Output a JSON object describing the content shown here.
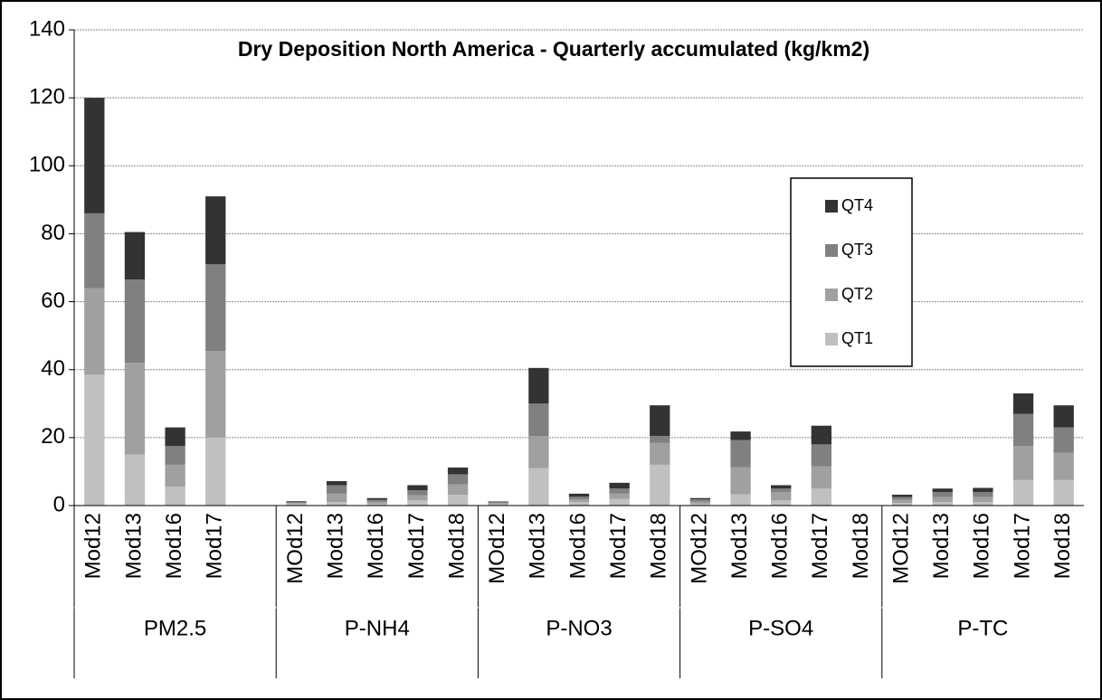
{
  "chart_data": {
    "type": "bar",
    "stacked": true,
    "title": "Dry Deposition North America - Quarterly accumulated (kg/km2)",
    "groups": [
      {
        "name": "PM2.5",
        "categories": [
          "Mod12",
          "Mod13",
          "Mod16",
          "Mod17",
          null
        ]
      },
      {
        "name": "P-NH4",
        "categories": [
          "MOd12",
          "Mod13",
          "Mod16",
          "Mod17",
          "Mod18"
        ]
      },
      {
        "name": "P-NO3",
        "categories": [
          "MOd12",
          "Mod13",
          "Mod16",
          "Mod17",
          "Mod18"
        ]
      },
      {
        "name": "P-SO4",
        "categories": [
          "MOd12",
          "Mod13",
          "Mod16",
          "Mod17",
          "Mod18"
        ]
      },
      {
        "name": "P-TC",
        "categories": [
          "MOd12",
          "Mod13",
          "Mod16",
          "Mod17",
          "Mod18"
        ]
      }
    ],
    "series": [
      {
        "name": "QT1",
        "color": "#c0c0c0",
        "values": [
          38.5,
          15,
          5.5,
          20,
          null,
          0.5,
          1,
          0.5,
          1.5,
          3.2,
          0.4,
          11,
          1,
          2,
          12,
          0.5,
          3.3,
          1.5,
          5,
          null,
          0.8,
          1,
          1,
          7.5,
          7.5
        ]
      },
      {
        "name": "QT2",
        "color": "#a0a0a0",
        "values": [
          25.5,
          27,
          6.5,
          25.5,
          null,
          0.3,
          2.5,
          0.6,
          1.5,
          3,
          0.3,
          9.5,
          0.8,
          1.5,
          6.5,
          0.7,
          8,
          2.5,
          6.5,
          null,
          0.9,
          1.5,
          1.5,
          10,
          8
        ]
      },
      {
        "name": "QT3",
        "color": "#808080",
        "values": [
          22,
          24.5,
          5.5,
          25.5,
          null,
          0.3,
          2.5,
          0.6,
          1.5,
          3,
          0.3,
          9.5,
          0.8,
          1.5,
          2,
          0.6,
          8,
          1,
          6.5,
          null,
          0.8,
          1.5,
          1.5,
          9.5,
          7.5
        ]
      },
      {
        "name": "QT4",
        "color": "#333333",
        "values": [
          34,
          14,
          5.5,
          20,
          null,
          0.2,
          1.2,
          0.5,
          1.5,
          2,
          0.2,
          10.5,
          0.9,
          1.7,
          9,
          0.4,
          2.5,
          1,
          5.5,
          null,
          0.7,
          1,
          1.2,
          6,
          6.5
        ]
      }
    ],
    "ylim": [
      0,
      140
    ],
    "yticks": [
      0,
      20,
      40,
      60,
      80,
      100,
      120,
      140
    ],
    "grid": true
  }
}
